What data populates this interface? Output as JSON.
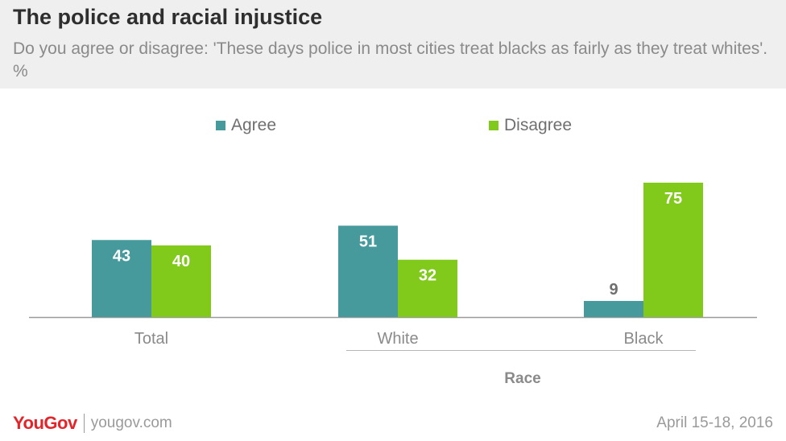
{
  "header": {
    "title": "The police and racial injustice",
    "subtitle": "Do you agree or disagree: 'These days police in most cities treat blacks as fairly as they treat whites'. %"
  },
  "footer": {
    "logo_text": "YouGov",
    "site": "yougov.com",
    "date": "April 15-18, 2016"
  },
  "colors": {
    "agree": "#469a9c",
    "disagree": "#81c91a",
    "axis": "#9a9a9a",
    "label_light": "#ffffff",
    "label_dark": "#6f6f6f",
    "category_text": "#8a8a8a"
  },
  "chart_data": {
    "type": "bar",
    "title": "The police and racial injustice",
    "subtitle": "Do you agree or disagree: 'These days police in most cities treat blacks as fairly as they treat whites'. %",
    "categories": [
      "Total",
      "White",
      "Black"
    ],
    "group_label": "Race",
    "grouped_categories": [
      "White",
      "Black"
    ],
    "series": [
      {
        "name": "Agree",
        "color": "#469a9c",
        "values": [
          43,
          51,
          9
        ]
      },
      {
        "name": "Disagree",
        "color": "#81c91a",
        "values": [
          40,
          32,
          75
        ]
      }
    ],
    "ylim": [
      0,
      75
    ],
    "legend_position": "top",
    "grid": false
  }
}
